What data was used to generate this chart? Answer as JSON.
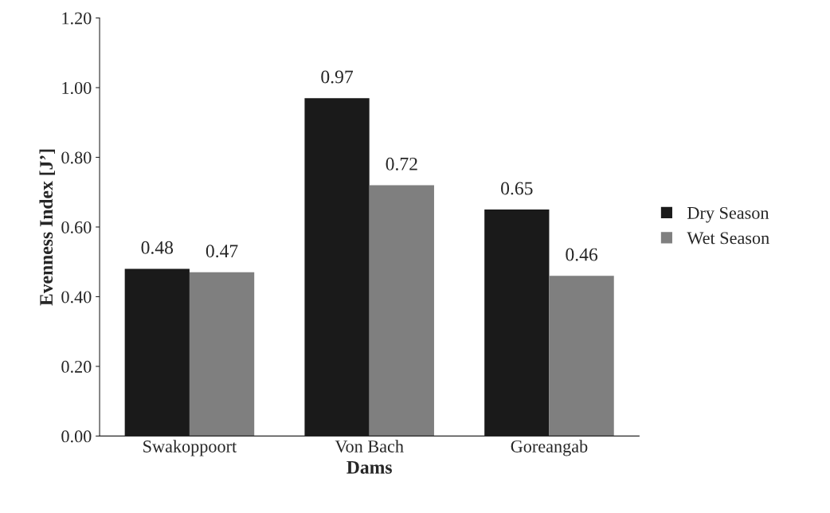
{
  "chart_data": {
    "type": "bar",
    "xlabel": "Dams",
    "ylabel": "Evenness Index [J’]",
    "categories": [
      "Swakoppoort",
      "Von Bach",
      "Goreangab"
    ],
    "series": [
      {
        "name": "Dry Season",
        "color": "#1a1a1a",
        "values": [
          0.48,
          0.97,
          0.65
        ]
      },
      {
        "name": "Wet Season",
        "color": "#7f7f7f",
        "values": [
          0.47,
          0.72,
          0.46
        ]
      }
    ],
    "ylim": [
      0,
      1.2
    ],
    "yticks": [
      {
        "value": 0,
        "label": "0.00"
      },
      {
        "value": 0.2,
        "label": "0.20"
      },
      {
        "value": 0.4,
        "label": "0.40"
      },
      {
        "value": 0.6,
        "label": "0.60"
      },
      {
        "value": 0.8,
        "label": "0.80"
      },
      {
        "value": 1.0,
        "label": "1.00"
      },
      {
        "value": 1.2,
        "label": "1.20"
      }
    ],
    "data_labels": true,
    "grid": false,
    "legend": "right"
  }
}
